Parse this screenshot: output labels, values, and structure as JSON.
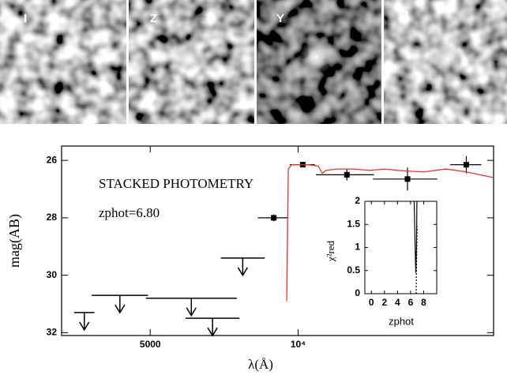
{
  "images": {
    "labels": [
      "I",
      "Z",
      "Y",
      "J"
    ]
  },
  "chart_data": [
    {
      "type": "scatter",
      "xlabel": "λ(Å)",
      "ylabel": "mag(AB)",
      "annotations": [
        "STACKED PHOTOMETRY",
        "zphot=6.80"
      ],
      "xscale": "log",
      "xlim": [
        3300,
        25000
      ],
      "ylim": [
        32.1,
        25.5
      ],
      "xticks": [
        5000,
        {
          "value": 10000,
          "label": "10⁴"
        }
      ],
      "yticks": [
        26,
        28,
        30,
        32
      ],
      "series": [
        {
          "style": "errorbar",
          "color": "#000000",
          "x": [
            8920,
            10220,
            12570,
            16700,
            22000
          ],
          "values": [
            28.0,
            26.15,
            26.5,
            26.65,
            26.15
          ],
          "yerr": [
            0.12,
            0.05,
            0.2,
            0.4,
            0.3
          ],
          "xerr": [
            640,
            600,
            1700,
            2500,
            1600
          ]
        },
        {
          "style": "upper_limit",
          "color": "#000000",
          "x_low": [
            3500,
            3800,
            4900,
            5900,
            6960
          ],
          "x_high": [
            3850,
            4950,
            7500,
            7600,
            8550
          ],
          "values": [
            31.3,
            30.7,
            30.8,
            31.5,
            29.4
          ]
        },
        {
          "style": "line",
          "color": "#e8341c",
          "x": [
            9480,
            9550,
            9700,
            10500,
            11000,
            11200,
            11400,
            12000,
            13000,
            14000,
            15000,
            16000,
            18000,
            20000,
            22000,
            25000
          ],
          "values": [
            30.9,
            26.3,
            26.15,
            26.15,
            26.2,
            26.45,
            26.35,
            26.3,
            26.3,
            26.35,
            26.3,
            26.35,
            26.4,
            26.3,
            26.4,
            26.6
          ]
        }
      ]
    },
    {
      "type": "line",
      "xlabel": "zphot",
      "ylabel": "χ²red",
      "xlim": [
        -1,
        10
      ],
      "ylim": [
        0,
        2
      ],
      "xticks": [
        0,
        2,
        4,
        6,
        8
      ],
      "yticks": [
        0,
        0.5,
        1,
        1.5,
        2
      ],
      "series": [
        {
          "color": "#000000",
          "dash": false,
          "x": [
            6.55,
            6.7,
            6.8,
            6.9,
            6.97
          ],
          "values": [
            2.0,
            1.0,
            0.45,
            1.0,
            2.0
          ]
        },
        {
          "color": "#000000",
          "dash": true,
          "x": [
            6.85,
            6.95,
            7.0
          ],
          "values": [
            0,
            1.0,
            1.45
          ]
        }
      ]
    }
  ]
}
